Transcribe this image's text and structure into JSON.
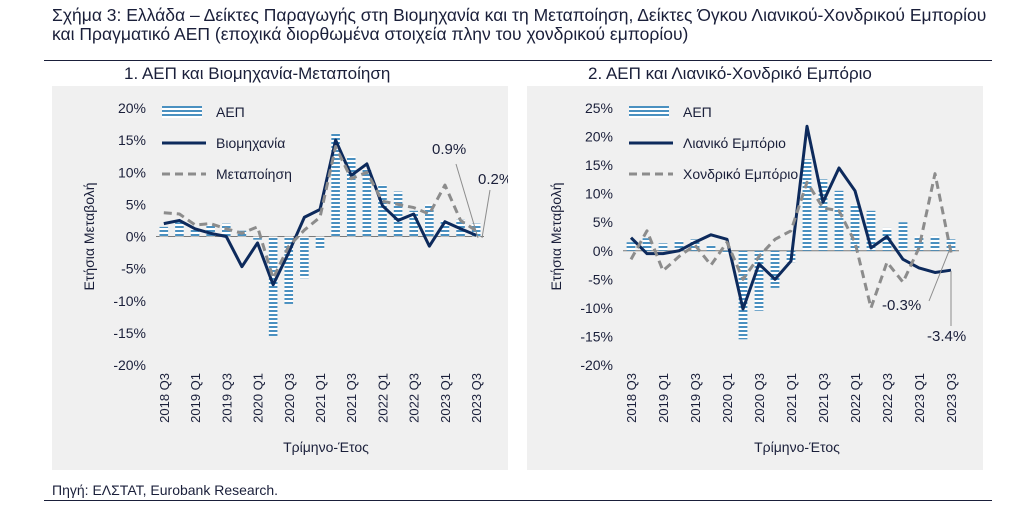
{
  "figure": {
    "title": "Σχήμα 3: Ελλάδα – Δείκτες Παραγωγής στη Βιομηχανία και τη Μεταποίηση, Δείκτες Όγκου Λιανικού-Χονδρικού Εμπορίου και Πραγματικό ΑΕΠ (εποχικά διορθωμένα στοιχεία πλην του χονδρικού εμπορίου)",
    "source": "Πηγή: ΕΛΣΤΑΤ, Eurobank Research."
  },
  "colors": {
    "gdp": "#4a90c0",
    "line1": "#0d2a5c",
    "line2": "#8c8c8c",
    "panel_bg": "#f0f0f0"
  },
  "chart_data": [
    {
      "type": "bar",
      "title": "1. ΑΕΠ και Βιομηχανία-Μεταποίηση",
      "xlabel": "Τρίμηνο-Έτος",
      "ylabel": "Ετήσια Μεταβολή",
      "ylim": [
        -20,
        20
      ],
      "yticks": [
        "-20%",
        "-15%",
        "-10%",
        "-5%",
        "0%",
        "5%",
        "10%",
        "15%",
        "20%"
      ],
      "categories": [
        "2018 Q3",
        "2018 Q4",
        "2019 Q1",
        "2019 Q2",
        "2019 Q3",
        "2019 Q4",
        "2020 Q1",
        "2020 Q2",
        "2020 Q3",
        "2020 Q4",
        "2021 Q1",
        "2021 Q2",
        "2021 Q3",
        "2021 Q4",
        "2022 Q1",
        "2022 Q2",
        "2022 Q3",
        "2022 Q4",
        "2023 Q1",
        "2023 Q2",
        "2023 Q3"
      ],
      "tick_labels": [
        "2018 Q3",
        "2019 Q1",
        "2019 Q3",
        "2020 Q1",
        "2020 Q3",
        "2021 Q1",
        "2021 Q3",
        "2022 Q1",
        "2022 Q3",
        "2023 Q1",
        "2023 Q3"
      ],
      "series": [
        {
          "name": "ΑΕΠ",
          "kind": "bar",
          "values": [
            1.5,
            2.2,
            1.3,
            1.8,
            2.0,
            0.9,
            -0.5,
            -15.5,
            -10.5,
            -6.5,
            -2.0,
            16.0,
            12.5,
            10.5,
            8.0,
            7.0,
            4.0,
            5.0,
            2.5,
            2.6,
            2.0
          ]
        },
        {
          "name": "Βιομηχανία",
          "kind": "line",
          "values": [
            2.0,
            2.5,
            1.2,
            0.5,
            0.0,
            -4.7,
            -1.0,
            -7.5,
            -2.5,
            3.0,
            4.2,
            15.0,
            9.5,
            11.3,
            4.8,
            2.5,
            3.5,
            -1.5,
            2.3,
            1.2,
            0.2
          ]
        },
        {
          "name": "Μεταποίηση",
          "kind": "line",
          "dashed": true,
          "values": [
            3.7,
            3.5,
            1.8,
            2.0,
            1.2,
            0.5,
            1.5,
            -6.5,
            -1.5,
            1.0,
            3.0,
            14.0,
            9.0,
            10.0,
            5.5,
            5.0,
            4.5,
            3.5,
            8.0,
            2.5,
            0.9
          ]
        }
      ],
      "annotations": [
        "0.9%",
        "0.2%"
      ],
      "legend": "top-left"
    },
    {
      "type": "bar",
      "title": "2. ΑΕΠ και Λιανικό-Χονδρικό Εμπόριο",
      "xlabel": "Τρίμηνο-Έτος",
      "ylabel": "Ετήσια Μεταβολή",
      "ylim": [
        -20,
        25
      ],
      "yticks": [
        "-20%",
        "-15%",
        "-10%",
        "-5%",
        "0%",
        "5%",
        "10%",
        "15%",
        "20%",
        "25%"
      ],
      "categories": [
        "2018 Q3",
        "2018 Q4",
        "2019 Q1",
        "2019 Q2",
        "2019 Q3",
        "2019 Q4",
        "2020 Q1",
        "2020 Q2",
        "2020 Q3",
        "2020 Q4",
        "2021 Q1",
        "2021 Q2",
        "2021 Q3",
        "2021 Q4",
        "2022 Q1",
        "2022 Q2",
        "2022 Q3",
        "2022 Q4",
        "2023 Q1",
        "2023 Q2",
        "2023 Q3"
      ],
      "tick_labels": [
        "2018 Q3",
        "2019 Q1",
        "2019 Q3",
        "2020 Q1",
        "2020 Q3",
        "2021 Q1",
        "2021 Q3",
        "2022 Q1",
        "2022 Q3",
        "2023 Q1",
        "2023 Q3"
      ],
      "series": [
        {
          "name": "ΑΕΠ",
          "kind": "bar",
          "values": [
            1.5,
            2.2,
            1.3,
            1.8,
            2.0,
            0.9,
            -0.5,
            -15.5,
            -10.5,
            -6.5,
            -2.0,
            16.0,
            12.5,
            10.5,
            8.0,
            7.0,
            4.0,
            5.0,
            2.5,
            2.6,
            2.0
          ]
        },
        {
          "name": "Λιανικό Εμπόριο",
          "kind": "line",
          "values": [
            2.3,
            -0.5,
            -0.5,
            0.0,
            1.5,
            2.8,
            2.0,
            -10.2,
            -2.3,
            -5.0,
            -1.8,
            21.8,
            8.5,
            14.5,
            10.5,
            0.5,
            2.5,
            -1.5,
            -3.0,
            -3.8,
            -3.4
          ]
        },
        {
          "name": "Χονδρικό Εμπόριο",
          "kind": "line",
          "dashed": true,
          "values": [
            -1.5,
            3.5,
            -3.5,
            -1.0,
            1.0,
            -2.5,
            1.5,
            -5.0,
            -1.0,
            2.0,
            3.5,
            12.0,
            7.5,
            7.0,
            1.5,
            -10.0,
            -2.0,
            -5.5,
            0.5,
            13.5,
            -0.3
          ]
        }
      ],
      "annotations": [
        "-0.3%",
        "-3.4%"
      ],
      "legend": "top-left"
    }
  ]
}
